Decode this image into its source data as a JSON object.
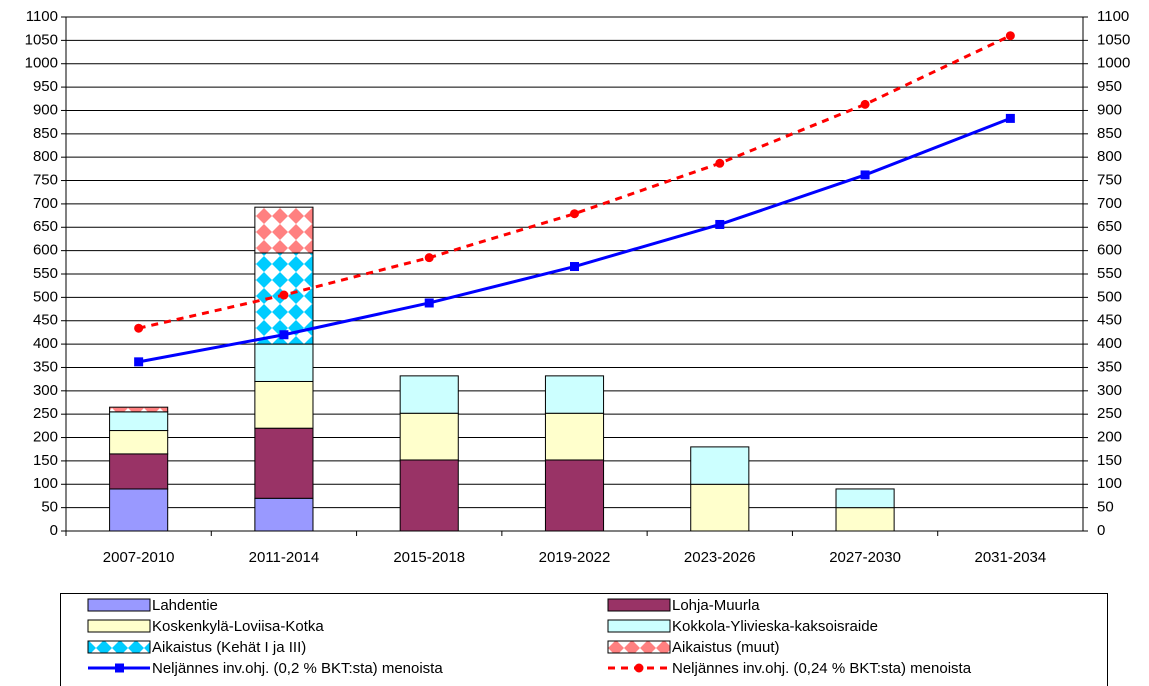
{
  "chart_data": {
    "type": "bar",
    "categories": [
      "2007-2010",
      "2011-2014",
      "2015-2018",
      "2019-2022",
      "2023-2026",
      "2027-2030",
      "2031-2034"
    ],
    "stacked": true,
    "series": [
      {
        "name": "Lahdentie",
        "color": "#9999ff",
        "values": [
          90,
          70,
          0,
          0,
          0,
          0,
          0
        ]
      },
      {
        "name": "Lohja-Muurla",
        "color": "#993366",
        "values": [
          75,
          150,
          152,
          152,
          0,
          0,
          0
        ]
      },
      {
        "name": "Koskenkylä-Loviisa-Kotka",
        "color": "#ffffcc",
        "values": [
          50,
          100,
          100,
          100,
          100,
          50,
          0
        ]
      },
      {
        "name": "Kokkola-Ylivieska-kaksoisraide",
        "color": "#ccffff",
        "values": [
          40,
          80,
          80,
          80,
          80,
          40,
          0
        ]
      },
      {
        "name": "Aikaistus (Kehät I ja III)",
        "color": "#00ccff",
        "pattern": "diamond",
        "values": [
          0,
          195,
          0,
          0,
          0,
          0,
          0
        ]
      },
      {
        "name": "Aikaistus (muut)",
        "color": "#ff8080",
        "pattern": "diamond",
        "values": [
          10,
          98,
          0,
          0,
          0,
          0,
          0
        ]
      },
      {
        "name": "Neljännes inv.ohj. (0,2 % BKT:sta) menoista",
        "type": "line",
        "axis": "y2",
        "color": "#0000ff",
        "marker": "square",
        "dashed": false,
        "values": [
          362,
          420,
          488,
          566,
          656,
          762,
          883
        ]
      },
      {
        "name": "Neljännes inv.ohj. (0,24 % BKT:sta) menoista",
        "type": "line",
        "axis": "y2",
        "color": "#ff0000",
        "marker": "circle",
        "dashed": true,
        "values": [
          434,
          505,
          585,
          679,
          787,
          913,
          1060
        ]
      }
    ],
    "ylim": [
      0,
      1100
    ],
    "yticks": [
      0,
      50,
      100,
      150,
      200,
      250,
      300,
      350,
      400,
      450,
      500,
      550,
      600,
      650,
      700,
      750,
      800,
      850,
      900,
      950,
      1000,
      1050,
      1100
    ],
    "y2lim": [
      0,
      1100
    ],
    "y2ticks": [
      0,
      50,
      100,
      150,
      200,
      250,
      300,
      350,
      400,
      450,
      500,
      550,
      600,
      650,
      700,
      750,
      800,
      850,
      900,
      950,
      1000,
      1050,
      1100
    ],
    "grid": true,
    "legend": "bottom"
  }
}
